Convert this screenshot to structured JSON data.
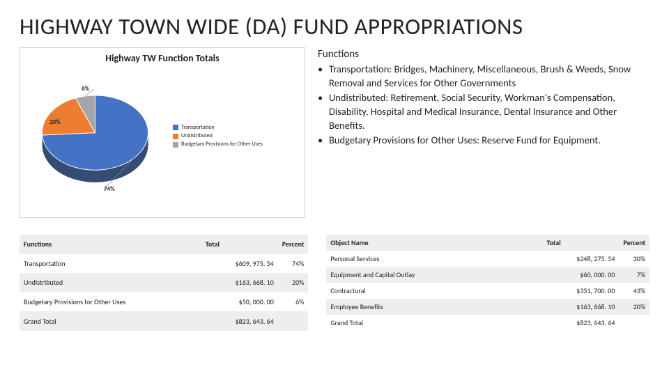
{
  "page_title": "HIGHWAY TOWN WIDE (DA) FUND APPROPRIATIONS",
  "chart": {
    "title": "Highway TW Function Totals",
    "type": "pie",
    "slices": [
      {
        "label": "Transportation",
        "percent": 74,
        "color": "#4472c4"
      },
      {
        "label": "Undistributed",
        "percent": 20,
        "color": "#ed7d31"
      },
      {
        "label": "Budgetary Provisions for Other Uses",
        "percent": 6,
        "color": "#a5a5a5"
      }
    ],
    "label_fontsize": 9,
    "depth_color": "#1f3864",
    "background_color": "#ffffff"
  },
  "explain": {
    "heading": "Functions",
    "items": [
      "Transportation: Bridges, Machinery, Miscellaneous, Brush & Weeds, Snow Removal and Services for Other Governments",
      "Undistributed: Retirement, Social Security, Workman's Compensation, Disability, Hospital and Medical Insurance, Dental Insurance and Other Benefits.",
      "Budgetary Provisions for Other Uses: Reserve Fund for Equipment."
    ]
  },
  "table1": {
    "headers": [
      "Functions",
      "Total",
      "Percent"
    ],
    "rows": [
      [
        "Transportation",
        "$609, 975. 54",
        "74%"
      ],
      [
        "Undistributed",
        "$163, 668. 10",
        "20%"
      ],
      [
        "Budgetary Provisions for Other Uses",
        "$50, 000. 00",
        "6%"
      ],
      [
        "Grand Total",
        "$823, 643. 64",
        ""
      ]
    ]
  },
  "table2": {
    "headers": [
      "Object Name",
      "Total",
      "Percent"
    ],
    "rows": [
      [
        "Personal Services",
        "$248, 275. 54",
        "30%"
      ],
      [
        "Equipment and Capital Outlay",
        "$60, 000. 00",
        "7%"
      ],
      [
        "Contractural",
        "$351, 700. 00",
        "43%"
      ],
      [
        "Employee Benefits",
        "$163, 668. 10",
        "20%"
      ],
      [
        "Grand Total",
        "$823, 643. 64",
        ""
      ]
    ]
  }
}
